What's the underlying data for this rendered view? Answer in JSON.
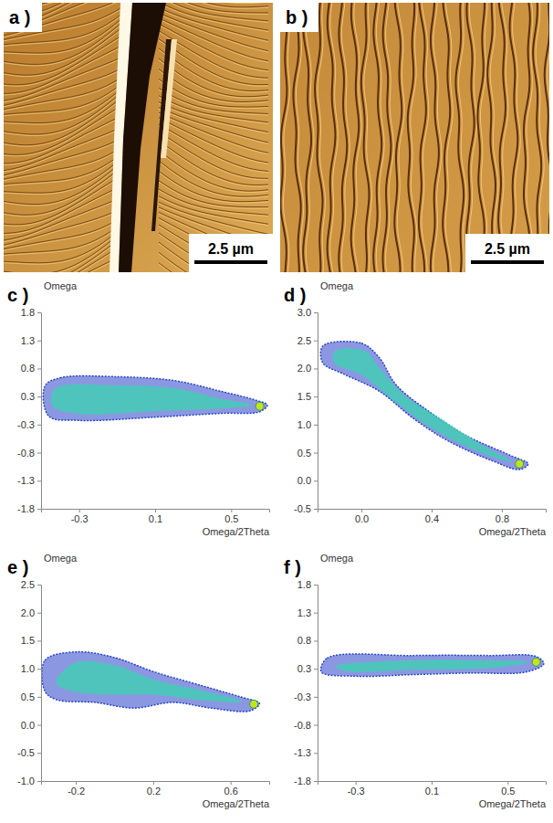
{
  "images": [
    {
      "label": "a )",
      "scale_bar": "2.5 µm"
    },
    {
      "label": "b )",
      "scale_bar": "2.5 µm"
    }
  ],
  "chart_data": [
    {
      "type": "scatter",
      "title": "c )",
      "xlabel": "Omega/2Theta",
      "ylabel": "Omega",
      "xlim": [
        -0.5,
        0.7
      ],
      "xticks": [
        -0.3,
        0.1,
        0.5
      ],
      "ylim": [
        -1.8,
        1.8
      ],
      "yticks": [
        -1.8,
        {
          "value": -1.286,
          "label": "-1.3"
        },
        {
          "value": -0.771,
          "label": "-0.8"
        },
        {
          "value": -0.257,
          "label": "-0.3"
        },
        {
          "value": 0.257,
          "label": "0.3"
        },
        {
          "value": 0.771,
          "label": "0.8"
        },
        {
          "value": 1.286,
          "label": "1.3"
        },
        1.8
      ],
      "series": [
        {
          "type": "area",
          "color": "#2b44c8",
          "x": [
            -0.48,
            -0.4,
            -0.1,
            0.2,
            0.45,
            0.62,
            0.69,
            0.65,
            0.45,
            0.1,
            -0.3,
            -0.46
          ],
          "values": [
            0.45,
            0.6,
            0.62,
            0.55,
            0.35,
            0.2,
            0.1,
            -0.02,
            -0.05,
            -0.12,
            -0.18,
            -0.1
          ]
        },
        {
          "type": "area",
          "color": "#3fd0b4",
          "x": [
            -0.42,
            -0.1,
            0.2,
            0.45,
            0.6,
            0.45,
            0.1,
            -0.3,
            -0.44
          ],
          "values": [
            0.4,
            0.45,
            0.4,
            0.2,
            0.1,
            0.05,
            0.0,
            -0.05,
            0.1
          ]
        },
        {
          "type": "scatter",
          "marker": "circle",
          "color": "#c8e020",
          "x": [
            0.65
          ],
          "values": [
            0.08
          ]
        }
      ]
    },
    {
      "type": "scatter",
      "title": "d )",
      "xlabel": "Omega/2Theta",
      "ylabel": "Omega",
      "xlim": [
        -0.25,
        1.05
      ],
      "xticks": [
        {
          "value": 0,
          "label": "0.0"
        },
        0.4,
        0.8
      ],
      "ylim": [
        -0.5,
        3.0
      ],
      "yticks": [
        -0.5,
        {
          "value": 0,
          "label": "0.0"
        },
        0.5,
        {
          "value": 1,
          "label": "1.0"
        },
        1.5,
        {
          "value": 2,
          "label": "2.0"
        },
        2.5,
        {
          "value": 3,
          "label": "3.0"
        }
      ],
      "series": [
        {
          "type": "area",
          "color": "#2b44c8",
          "x": [
            -0.22,
            0.0,
            0.1,
            0.2,
            0.4,
            0.6,
            0.85,
            0.95,
            0.9,
            0.75,
            0.5,
            0.3,
            0.1,
            -0.1,
            -0.22
          ],
          "values": [
            2.4,
            2.45,
            2.2,
            1.7,
            1.2,
            0.8,
            0.45,
            0.3,
            0.2,
            0.35,
            0.7,
            1.1,
            1.6,
            1.9,
            2.1
          ]
        },
        {
          "type": "area",
          "color": "#3fd0b4",
          "x": [
            -0.15,
            0.02,
            0.1,
            0.25,
            0.45,
            0.7,
            0.85,
            0.65,
            0.4,
            0.2,
            0.0,
            -0.15
          ],
          "values": [
            2.3,
            2.3,
            2.0,
            1.5,
            1.1,
            0.6,
            0.35,
            0.55,
            0.95,
            1.4,
            1.9,
            2.1
          ]
        },
        {
          "type": "scatter",
          "marker": "circle",
          "color": "#c8e020",
          "x": [
            0.9
          ],
          "values": [
            0.3
          ]
        }
      ]
    },
    {
      "type": "scatter",
      "title": "e )",
      "xlabel": "Omega/2Theta",
      "ylabel": "Omega",
      "xlim": [
        -0.38,
        0.8
      ],
      "xticks": [
        -0.2,
        0.2,
        0.6
      ],
      "ylim": [
        -1.0,
        2.5
      ],
      "yticks": [
        {
          "value": -1,
          "label": "-1.0"
        },
        -0.5,
        {
          "value": 0,
          "label": "0.0"
        },
        0.5,
        {
          "value": 1,
          "label": "1.0"
        },
        1.5,
        {
          "value": 2,
          "label": "2.0"
        },
        2.5
      ],
      "series": [
        {
          "type": "area",
          "color": "#2b44c8",
          "x": [
            -0.36,
            -0.36,
            -0.2,
            0.0,
            0.2,
            0.45,
            0.65,
            0.75,
            0.7,
            0.5,
            0.3,
            0.1,
            -0.1,
            -0.3
          ],
          "values": [
            0.6,
            1.15,
            1.3,
            1.2,
            0.95,
            0.7,
            0.5,
            0.38,
            0.25,
            0.3,
            0.4,
            0.3,
            0.4,
            0.45
          ]
        },
        {
          "type": "area",
          "color": "#3fd0b4",
          "x": [
            -0.3,
            -0.2,
            0.0,
            0.2,
            0.45,
            0.65,
            0.45,
            0.2,
            0.0,
            -0.2
          ],
          "values": [
            0.75,
            1.1,
            1.05,
            0.8,
            0.6,
            0.42,
            0.45,
            0.55,
            0.55,
            0.6
          ]
        },
        {
          "type": "scatter",
          "marker": "circle",
          "color": "#c8e020",
          "x": [
            0.72
          ],
          "values": [
            0.37
          ]
        }
      ]
    },
    {
      "type": "scatter",
      "title": "f )",
      "xlabel": "Omega/2Theta",
      "ylabel": "Omega",
      "xlim": [
        -0.5,
        0.7
      ],
      "xticks": [
        -0.3,
        0.1,
        0.5
      ],
      "ylim": [
        -1.8,
        1.8
      ],
      "yticks": [
        -1.8,
        {
          "value": -1.286,
          "label": "-1.3"
        },
        {
          "value": -0.771,
          "label": "-0.8"
        },
        {
          "value": -0.257,
          "label": "-0.3"
        },
        {
          "value": 0.257,
          "label": "0.3"
        },
        {
          "value": 0.771,
          "label": "0.8"
        },
        {
          "value": 1.286,
          "label": "1.3"
        },
        1.8
      ],
      "series": [
        {
          "type": "area",
          "color": "#2b44c8",
          "x": [
            -0.48,
            -0.45,
            0.0,
            0.4,
            0.65,
            0.69,
            0.6,
            0.3,
            0.0,
            -0.3
          ],
          "values": [
            0.2,
            0.45,
            0.5,
            0.5,
            0.48,
            0.35,
            0.2,
            0.18,
            0.15,
            0.12
          ]
        },
        {
          "type": "area",
          "color": "#3fd0b4",
          "x": [
            -0.4,
            0.0,
            0.4,
            0.6,
            0.4,
            0.0,
            -0.35
          ],
          "values": [
            0.3,
            0.4,
            0.4,
            0.38,
            0.28,
            0.25,
            0.22
          ]
        },
        {
          "type": "scatter",
          "marker": "circle",
          "color": "#c8e020",
          "x": [
            0.65
          ],
          "values": [
            0.38
          ]
        }
      ]
    }
  ]
}
